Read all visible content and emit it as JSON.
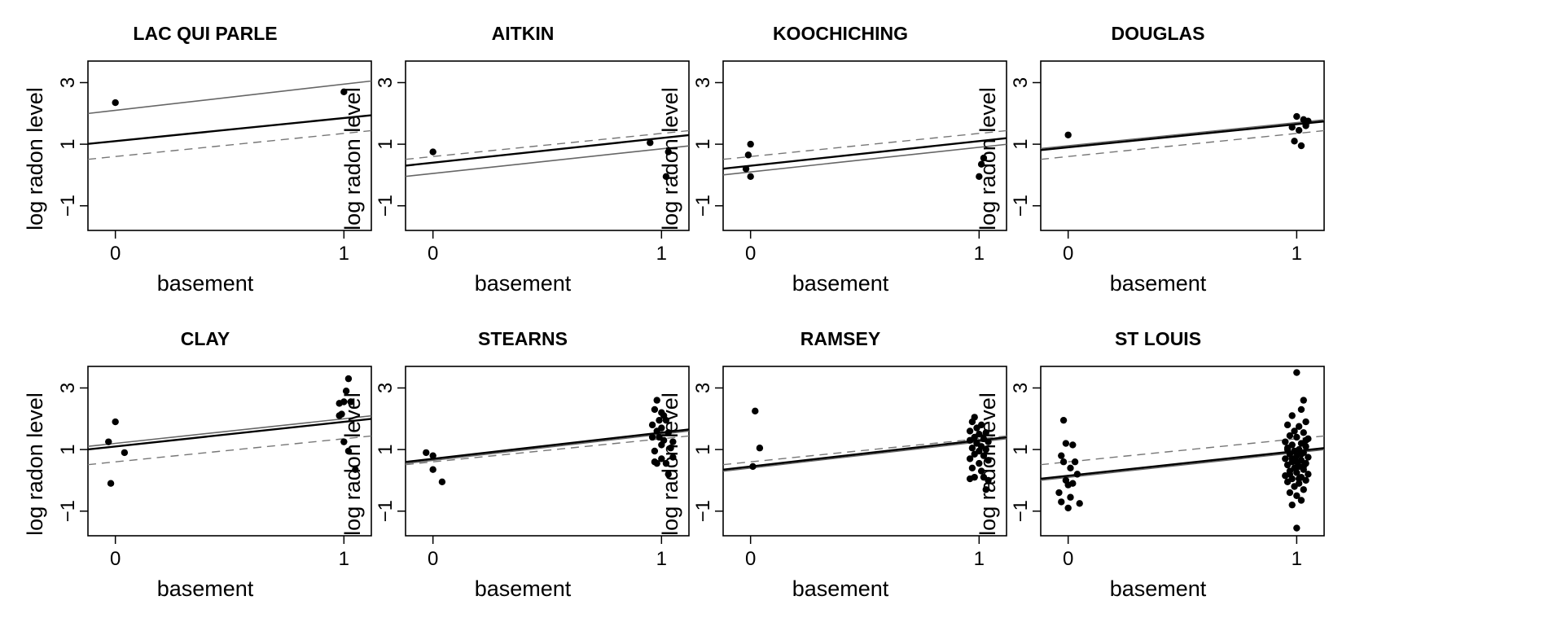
{
  "chart_data": [
    {
      "type": "scatter",
      "title": "LAC QUI PARLE",
      "xlabel": "basement",
      "ylabel": "log radon level",
      "xticks": [
        "0",
        "1"
      ],
      "yticks": [
        "−1",
        "1",
        "3"
      ],
      "xlim": [
        -0.12,
        1.12
      ],
      "ylim": [
        -1.8,
        3.7
      ],
      "points": [
        {
          "x": 0,
          "y": 2.35
        },
        {
          "x": 1,
          "y": 2.7
        }
      ],
      "lines": [
        {
          "style": "gray",
          "y0": 2.1,
          "y1": 2.95
        },
        {
          "style": "black",
          "y0": 1.1,
          "y1": 1.85
        },
        {
          "style": "dashed",
          "y0": 0.6,
          "y1": 1.35
        }
      ]
    },
    {
      "type": "scatter",
      "title": "AITKIN",
      "xlabel": "basement",
      "ylabel": "log radon level",
      "xticks": [
        "0",
        "1"
      ],
      "yticks": [
        "−1",
        "1",
        "3"
      ],
      "xlim": [
        -0.12,
        1.12
      ],
      "ylim": [
        -1.8,
        3.7
      ],
      "points": [
        {
          "x": 0,
          "y": 0.75
        },
        {
          "x": 0.95,
          "y": 1.05
        },
        {
          "x": 1.03,
          "y": 0.75
        },
        {
          "x": 1.02,
          "y": -0.05
        }
      ],
      "lines": [
        {
          "style": "gray",
          "y0": 0.05,
          "y1": 0.85
        },
        {
          "style": "black",
          "y0": 0.4,
          "y1": 1.2
        },
        {
          "style": "dashed",
          "y0": 0.6,
          "y1": 1.35
        }
      ]
    },
    {
      "type": "scatter",
      "title": "KOOCHICHING",
      "xlabel": "basement",
      "ylabel": "log radon level",
      "xticks": [
        "0",
        "1"
      ],
      "yticks": [
        "−1",
        "1",
        "3"
      ],
      "xlim": [
        -0.12,
        1.12
      ],
      "ylim": [
        -1.8,
        3.7
      ],
      "points": [
        {
          "x": 0,
          "y": 1.0
        },
        {
          "x": -0.01,
          "y": 0.65
        },
        {
          "x": -0.02,
          "y": 0.2
        },
        {
          "x": 0,
          "y": -0.05
        },
        {
          "x": 1.02,
          "y": 0.55
        },
        {
          "x": 1.01,
          "y": 0.35
        },
        {
          "x": 1,
          "y": -0.05
        }
      ],
      "lines": [
        {
          "style": "gray",
          "y0": 0.1,
          "y1": 0.9
        },
        {
          "style": "black",
          "y0": 0.3,
          "y1": 1.1
        },
        {
          "style": "dashed",
          "y0": 0.6,
          "y1": 1.35
        }
      ]
    },
    {
      "type": "scatter",
      "title": "DOUGLAS",
      "xlabel": "basement",
      "ylabel": "log radon level",
      "xticks": [
        "0",
        "1"
      ],
      "yticks": [
        "−1",
        "1",
        "3"
      ],
      "xlim": [
        -0.12,
        1.12
      ],
      "ylim": [
        -1.8,
        3.7
      ],
      "points": [
        {
          "x": 0,
          "y": 1.3
        },
        {
          "x": 0.99,
          "y": 1.1
        },
        {
          "x": 1.0,
          "y": 1.9
        },
        {
          "x": 0.98,
          "y": 1.55
        },
        {
          "x": 1.03,
          "y": 1.8
        },
        {
          "x": 1.05,
          "y": 1.75
        },
        {
          "x": 1.04,
          "y": 1.6
        },
        {
          "x": 1.01,
          "y": 1.45
        },
        {
          "x": 1.02,
          "y": 0.95
        }
      ],
      "lines": [
        {
          "style": "gray",
          "y0": 0.95,
          "y1": 1.7
        },
        {
          "style": "black",
          "y0": 0.9,
          "y1": 1.65
        },
        {
          "style": "dashed",
          "y0": 0.6,
          "y1": 1.35
        }
      ]
    },
    {
      "type": "scatter",
      "title": "CLAY",
      "xlabel": "basement",
      "ylabel": "log radon level",
      "xticks": [
        "0",
        "1"
      ],
      "yticks": [
        "−1",
        "1",
        "3"
      ],
      "xlim": [
        -0.12,
        1.12
      ],
      "ylim": [
        -1.8,
        3.7
      ],
      "points": [
        {
          "x": -0.03,
          "y": 1.25
        },
        {
          "x": 0,
          "y": 1.9
        },
        {
          "x": 0.04,
          "y": 0.9
        },
        {
          "x": -0.02,
          "y": -0.1
        },
        {
          "x": 0.98,
          "y": 2.5
        },
        {
          "x": 1.02,
          "y": 3.3
        },
        {
          "x": 1.01,
          "y": 2.9
        },
        {
          "x": 1.0,
          "y": 2.55
        },
        {
          "x": 1.03,
          "y": 2.55
        },
        {
          "x": 0.98,
          "y": 2.1
        },
        {
          "x": 0.99,
          "y": 2.15
        },
        {
          "x": 1.0,
          "y": 1.25
        },
        {
          "x": 1.02,
          "y": 0.95
        },
        {
          "x": 1.05,
          "y": 0.35
        }
      ],
      "lines": [
        {
          "style": "gray",
          "y0": 1.2,
          "y1": 2.0
        },
        {
          "style": "black",
          "y0": 1.1,
          "y1": 1.9
        },
        {
          "style": "dashed",
          "y0": 0.6,
          "y1": 1.35
        }
      ]
    },
    {
      "type": "scatter",
      "title": "STEARNS",
      "xlabel": "basement",
      "ylabel": "log radon level",
      "xticks": [
        "0",
        "1"
      ],
      "yticks": [
        "−1",
        "1",
        "3"
      ],
      "xlim": [
        -0.12,
        1.12
      ],
      "ylim": [
        -1.8,
        3.7
      ],
      "points": [
        {
          "x": -0.03,
          "y": 0.9
        },
        {
          "x": 0,
          "y": 0.8
        },
        {
          "x": 0,
          "y": 0.35
        },
        {
          "x": 0.04,
          "y": -0.05
        },
        {
          "x": 0.98,
          "y": 2.6
        },
        {
          "x": 0.97,
          "y": 2.3
        },
        {
          "x": 1.0,
          "y": 2.2
        },
        {
          "x": 1.01,
          "y": 2.1
        },
        {
          "x": 0.99,
          "y": 1.95
        },
        {
          "x": 1.02,
          "y": 1.95
        },
        {
          "x": 0.96,
          "y": 1.8
        },
        {
          "x": 1.0,
          "y": 1.7
        },
        {
          "x": 0.98,
          "y": 1.6
        },
        {
          "x": 1.03,
          "y": 1.55
        },
        {
          "x": 0.96,
          "y": 1.4
        },
        {
          "x": 0.99,
          "y": 1.4
        },
        {
          "x": 1.01,
          "y": 1.3
        },
        {
          "x": 1.05,
          "y": 1.25
        },
        {
          "x": 1.0,
          "y": 1.15
        },
        {
          "x": 1.04,
          "y": 1.05
        },
        {
          "x": 0.97,
          "y": 0.95
        },
        {
          "x": 1.05,
          "y": 0.75
        },
        {
          "x": 0.97,
          "y": 0.6
        },
        {
          "x": 0.98,
          "y": 0.55
        },
        {
          "x": 1.0,
          "y": 0.7
        },
        {
          "x": 1.02,
          "y": 0.55
        },
        {
          "x": 1.03,
          "y": 0.2
        }
      ],
      "lines": [
        {
          "style": "gray",
          "y0": 0.65,
          "y1": 1.5
        },
        {
          "style": "black",
          "y0": 0.7,
          "y1": 1.55
        },
        {
          "style": "dashed",
          "y0": 0.6,
          "y1": 1.35
        }
      ]
    },
    {
      "type": "scatter",
      "title": "RAMSEY",
      "xlabel": "basement",
      "ylabel": "log radon level",
      "xticks": [
        "0",
        "1"
      ],
      "yticks": [
        "−1",
        "1",
        "3"
      ],
      "xlim": [
        -0.12,
        1.12
      ],
      "ylim": [
        -1.8,
        3.7
      ],
      "points": [
        {
          "x": 0.02,
          "y": 2.25
        },
        {
          "x": 0.04,
          "y": 1.05
        },
        {
          "x": 0.01,
          "y": 0.45
        },
        {
          "x": 0.98,
          "y": 2.05
        },
        {
          "x": 0.97,
          "y": 1.9
        },
        {
          "x": 1.01,
          "y": 1.8
        },
        {
          "x": 0.99,
          "y": 1.7
        },
        {
          "x": 0.96,
          "y": 1.6
        },
        {
          "x": 1.03,
          "y": 1.55
        },
        {
          "x": 1.0,
          "y": 1.5
        },
        {
          "x": 0.98,
          "y": 1.4
        },
        {
          "x": 1.02,
          "y": 1.35
        },
        {
          "x": 0.96,
          "y": 1.3
        },
        {
          "x": 1.04,
          "y": 1.25
        },
        {
          "x": 0.99,
          "y": 1.2
        },
        {
          "x": 1.01,
          "y": 1.1
        },
        {
          "x": 0.97,
          "y": 1.05
        },
        {
          "x": 1.03,
          "y": 1.0
        },
        {
          "x": 1.0,
          "y": 0.95
        },
        {
          "x": 0.98,
          "y": 0.85
        },
        {
          "x": 1.02,
          "y": 0.8
        },
        {
          "x": 0.96,
          "y": 0.7
        },
        {
          "x": 1.04,
          "y": 0.65
        },
        {
          "x": 1.0,
          "y": 0.55
        },
        {
          "x": 0.97,
          "y": 0.4
        },
        {
          "x": 1.01,
          "y": 0.3
        },
        {
          "x": 0.98,
          "y": 0.1
        },
        {
          "x": 0.96,
          "y": 0.05
        },
        {
          "x": 1.02,
          "y": 0.1
        },
        {
          "x": 1.04,
          "y": 0.0
        },
        {
          "x": 1.03,
          "y": -0.3
        }
      ],
      "lines": [
        {
          "style": "gray",
          "y0": 0.4,
          "y1": 1.25
        },
        {
          "style": "black",
          "y0": 0.45,
          "y1": 1.3
        },
        {
          "style": "dashed",
          "y0": 0.6,
          "y1": 1.35
        }
      ]
    },
    {
      "type": "scatter",
      "title": "ST LOUIS",
      "xlabel": "basement",
      "ylabel": "log radon level",
      "xticks": [
        "0",
        "1"
      ],
      "yticks": [
        "−1",
        "1",
        "3"
      ],
      "xlim": [
        -0.12,
        1.12
      ],
      "ylim": [
        -1.8,
        3.7
      ],
      "points": [
        {
          "x": -0.02,
          "y": 1.95
        },
        {
          "x": -0.01,
          "y": 1.2
        },
        {
          "x": 0.02,
          "y": 1.15
        },
        {
          "x": -0.03,
          "y": 0.8
        },
        {
          "x": 0.03,
          "y": 0.6
        },
        {
          "x": 0.01,
          "y": 0.4
        },
        {
          "x": -0.02,
          "y": 0.6
        },
        {
          "x": 0.04,
          "y": 0.2
        },
        {
          "x": -0.01,
          "y": 0.0
        },
        {
          "x": 0.02,
          "y": -0.1
        },
        {
          "x": 0.0,
          "y": -0.15
        },
        {
          "x": -0.04,
          "y": -0.4
        },
        {
          "x": 0.01,
          "y": -0.55
        },
        {
          "x": -0.03,
          "y": -0.7
        },
        {
          "x": 0.05,
          "y": -0.75
        },
        {
          "x": 0.0,
          "y": -0.9
        },
        {
          "x": 1.0,
          "y": 3.5
        },
        {
          "x": 1.03,
          "y": 2.6
        },
        {
          "x": 1.02,
          "y": 2.3
        },
        {
          "x": 0.98,
          "y": 2.1
        },
        {
          "x": 1.04,
          "y": 1.9
        },
        {
          "x": 0.96,
          "y": 1.8
        },
        {
          "x": 1.01,
          "y": 1.75
        },
        {
          "x": 0.99,
          "y": 1.6
        },
        {
          "x": 1.03,
          "y": 1.55
        },
        {
          "x": 0.97,
          "y": 1.45
        },
        {
          "x": 1.0,
          "y": 1.4
        },
        {
          "x": 1.05,
          "y": 1.35
        },
        {
          "x": 0.95,
          "y": 1.25
        },
        {
          "x": 1.02,
          "y": 1.2
        },
        {
          "x": 0.98,
          "y": 1.15
        },
        {
          "x": 1.04,
          "y": 1.1
        },
        {
          "x": 0.96,
          "y": 1.05
        },
        {
          "x": 1.01,
          "y": 1.0
        },
        {
          "x": 0.99,
          "y": 0.95
        },
        {
          "x": 1.03,
          "y": 0.9
        },
        {
          "x": 0.97,
          "y": 0.85
        },
        {
          "x": 1.0,
          "y": 0.8
        },
        {
          "x": 1.05,
          "y": 0.75
        },
        {
          "x": 0.95,
          "y": 0.7
        },
        {
          "x": 1.02,
          "y": 0.65
        },
        {
          "x": 0.98,
          "y": 0.6
        },
        {
          "x": 1.04,
          "y": 0.55
        },
        {
          "x": 0.96,
          "y": 0.5
        },
        {
          "x": 1.01,
          "y": 0.45
        },
        {
          "x": 0.99,
          "y": 0.4
        },
        {
          "x": 1.03,
          "y": 0.35
        },
        {
          "x": 0.97,
          "y": 0.3
        },
        {
          "x": 1.0,
          "y": 0.25
        },
        {
          "x": 1.05,
          "y": 0.2
        },
        {
          "x": 0.95,
          "y": 0.15
        },
        {
          "x": 1.02,
          "y": 0.1
        },
        {
          "x": 0.98,
          "y": 0.05
        },
        {
          "x": 1.04,
          "y": 0.0
        },
        {
          "x": 0.96,
          "y": -0.05
        },
        {
          "x": 1.01,
          "y": -0.1
        },
        {
          "x": 0.99,
          "y": -0.2
        },
        {
          "x": 1.03,
          "y": -0.3
        },
        {
          "x": 0.97,
          "y": -0.4
        },
        {
          "x": 1.0,
          "y": -0.5
        },
        {
          "x": 1.02,
          "y": -0.65
        },
        {
          "x": 0.98,
          "y": -0.8
        },
        {
          "x": 1.0,
          "y": -1.55
        },
        {
          "x": 1.04,
          "y": 1.3
        },
        {
          "x": 0.96,
          "y": 1.0
        },
        {
          "x": 1.02,
          "y": 0.85
        },
        {
          "x": 0.98,
          "y": 0.7
        },
        {
          "x": 1.0,
          "y": 0.6
        },
        {
          "x": 1.03,
          "y": 0.45
        },
        {
          "x": 0.97,
          "y": 0.2
        },
        {
          "x": 1.01,
          "y": 0.05
        }
      ],
      "lines": [
        {
          "style": "gray",
          "y0": 0.1,
          "y1": 0.9
        },
        {
          "style": "black",
          "y0": 0.15,
          "y1": 0.95
        },
        {
          "style": "dashed",
          "y0": 0.6,
          "y1": 1.35
        }
      ]
    }
  ]
}
